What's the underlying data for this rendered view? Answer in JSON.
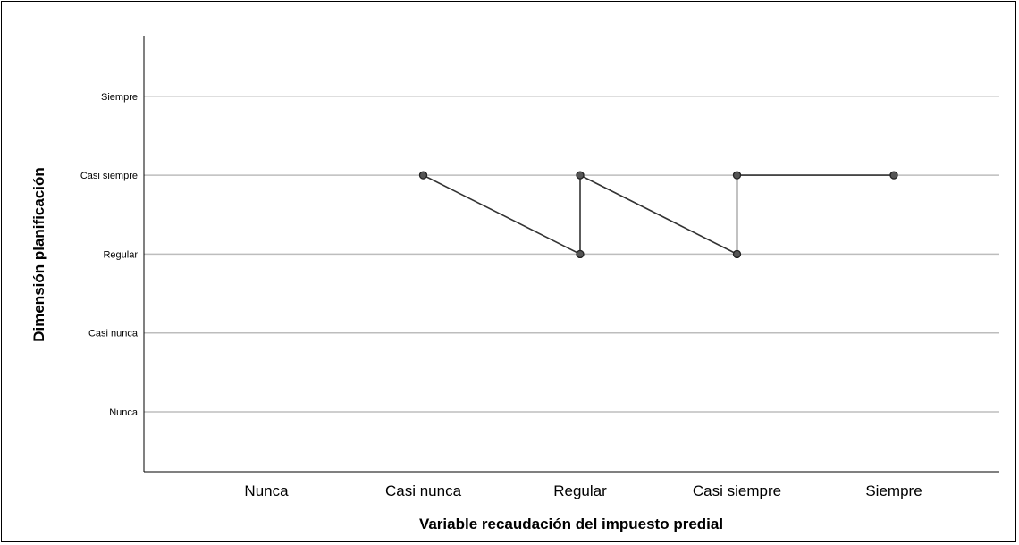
{
  "chart_data": {
    "type": "line",
    "title": "",
    "xlabel": "Variable recaudación del impuesto predial",
    "ylabel": "Dimensión planificación",
    "x_categories": [
      "Nunca",
      "Casi nunca",
      "Regular",
      "Casi siempre",
      "Siempre"
    ],
    "y_categories": [
      "Nunca",
      "Casi nunca",
      "Regular",
      "Casi siempre",
      "Siempre"
    ],
    "grid": "horizontal",
    "legend": "none",
    "series": [
      {
        "points": [
          {
            "x": "Casi nunca",
            "y": "Casi siempre"
          },
          {
            "x": "Regular",
            "y": "Regular"
          },
          {
            "x": "Regular",
            "y": "Casi siempre"
          },
          {
            "x": "Casi siempre",
            "y": "Regular"
          },
          {
            "x": "Casi siempre",
            "y": "Casi siempre"
          },
          {
            "x": "Siempre",
            "y": "Casi siempre"
          }
        ]
      }
    ],
    "colors": {
      "line": "#333333",
      "marker_fill": "#555555",
      "marker_stroke": "#222222",
      "grid": "#bdbdbd",
      "axis": "#000000"
    }
  }
}
